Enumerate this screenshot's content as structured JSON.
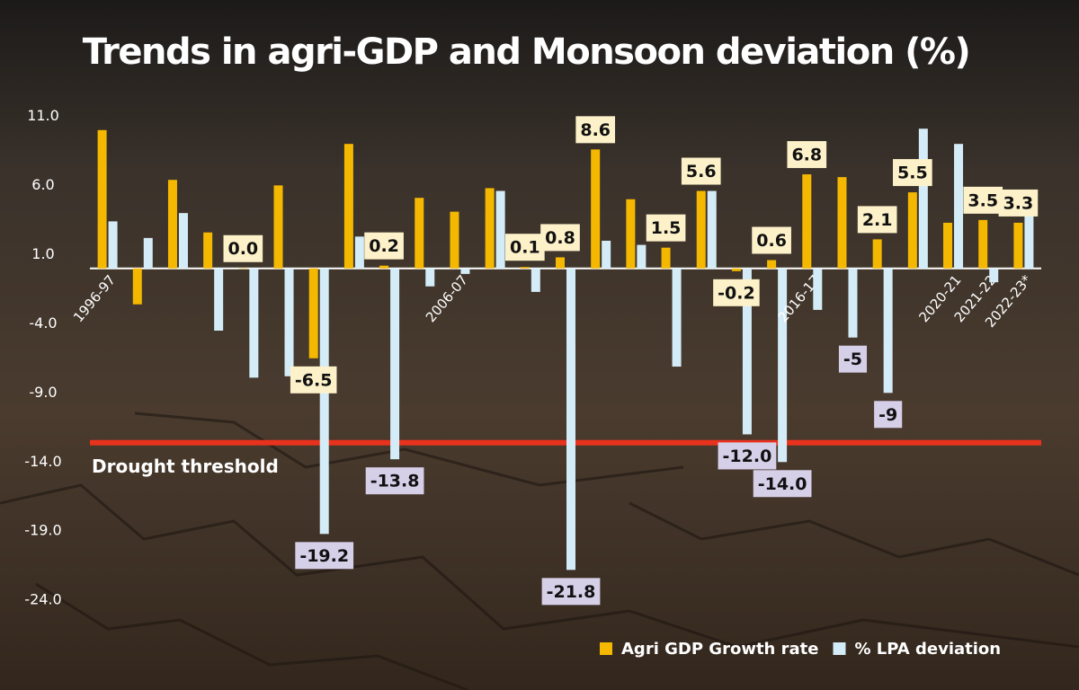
{
  "chart_data": {
    "type": "bar",
    "title": "Trends in agri-GDP and Monsoon deviation (%)",
    "categories": [
      "1996-97",
      null,
      null,
      null,
      null,
      null,
      null,
      null,
      null,
      null,
      "2006-07",
      null,
      null,
      null,
      null,
      null,
      null,
      null,
      null,
      null,
      "2016-17",
      null,
      null,
      null,
      "2020-21",
      "2021-22",
      "2022-23*"
    ],
    "series": [
      {
        "name": "Agri GDP Growth rate",
        "color": "#f5b800",
        "label_color": "#fdf1c9",
        "values": [
          10.0,
          -2.6,
          6.4,
          2.6,
          0.0,
          6.0,
          -6.5,
          9.0,
          0.2,
          5.1,
          4.1,
          5.8,
          0.1,
          0.8,
          8.6,
          5.0,
          1.5,
          5.6,
          -0.2,
          0.6,
          6.8,
          6.6,
          2.1,
          5.5,
          3.3,
          3.5,
          3.3
        ],
        "value_labels": [
          null,
          null,
          null,
          null,
          "0.0",
          null,
          "-6.5",
          null,
          "0.2",
          null,
          null,
          null,
          "0.1",
          "0.8",
          "8.6",
          null,
          "1.5",
          "5.6",
          "-0.2",
          "0.6",
          "6.8",
          null,
          "2.1",
          "5.5",
          null,
          "3.5",
          "3.3"
        ]
      },
      {
        "name": "% LPA deviation",
        "color": "#d4ecf7",
        "label_color": "#d6cfe8",
        "values": [
          3.4,
          2.2,
          4.0,
          -4.5,
          -7.9,
          -7.8,
          -19.2,
          2.3,
          -13.8,
          -1.3,
          -0.4,
          5.6,
          -1.7,
          -21.8,
          2.0,
          1.7,
          -7.1,
          5.6,
          -12.0,
          -14.0,
          -3.0,
          -5,
          -9,
          10.1,
          9.0,
          -1.0,
          3.9
        ],
        "value_labels": [
          null,
          null,
          null,
          null,
          null,
          null,
          "-19.2",
          null,
          "-13.8",
          null,
          null,
          null,
          null,
          "-21.8",
          null,
          null,
          null,
          null,
          "-12.0",
          "-14.0",
          null,
          "-5",
          "-9",
          null,
          null,
          null,
          null
        ]
      }
    ],
    "ylim": [
      -26,
      12
    ],
    "yticks": [
      {
        "value": 11,
        "label": "11.0"
      },
      {
        "value": 6,
        "label": "6.0"
      },
      {
        "value": 1,
        "label": "1.0"
      },
      {
        "value": -4,
        "label": "-4.0"
      },
      {
        "value": -9,
        "label": "-9.0"
      },
      {
        "value": -14,
        "label": "-14.0"
      },
      {
        "value": -19,
        "label": "-19.0"
      },
      {
        "value": -24,
        "label": "-24.0"
      }
    ],
    "threshold": {
      "value": -12.6,
      "label": "Drought threshold",
      "color": "#e8321e"
    },
    "legend": "bottom-right"
  }
}
